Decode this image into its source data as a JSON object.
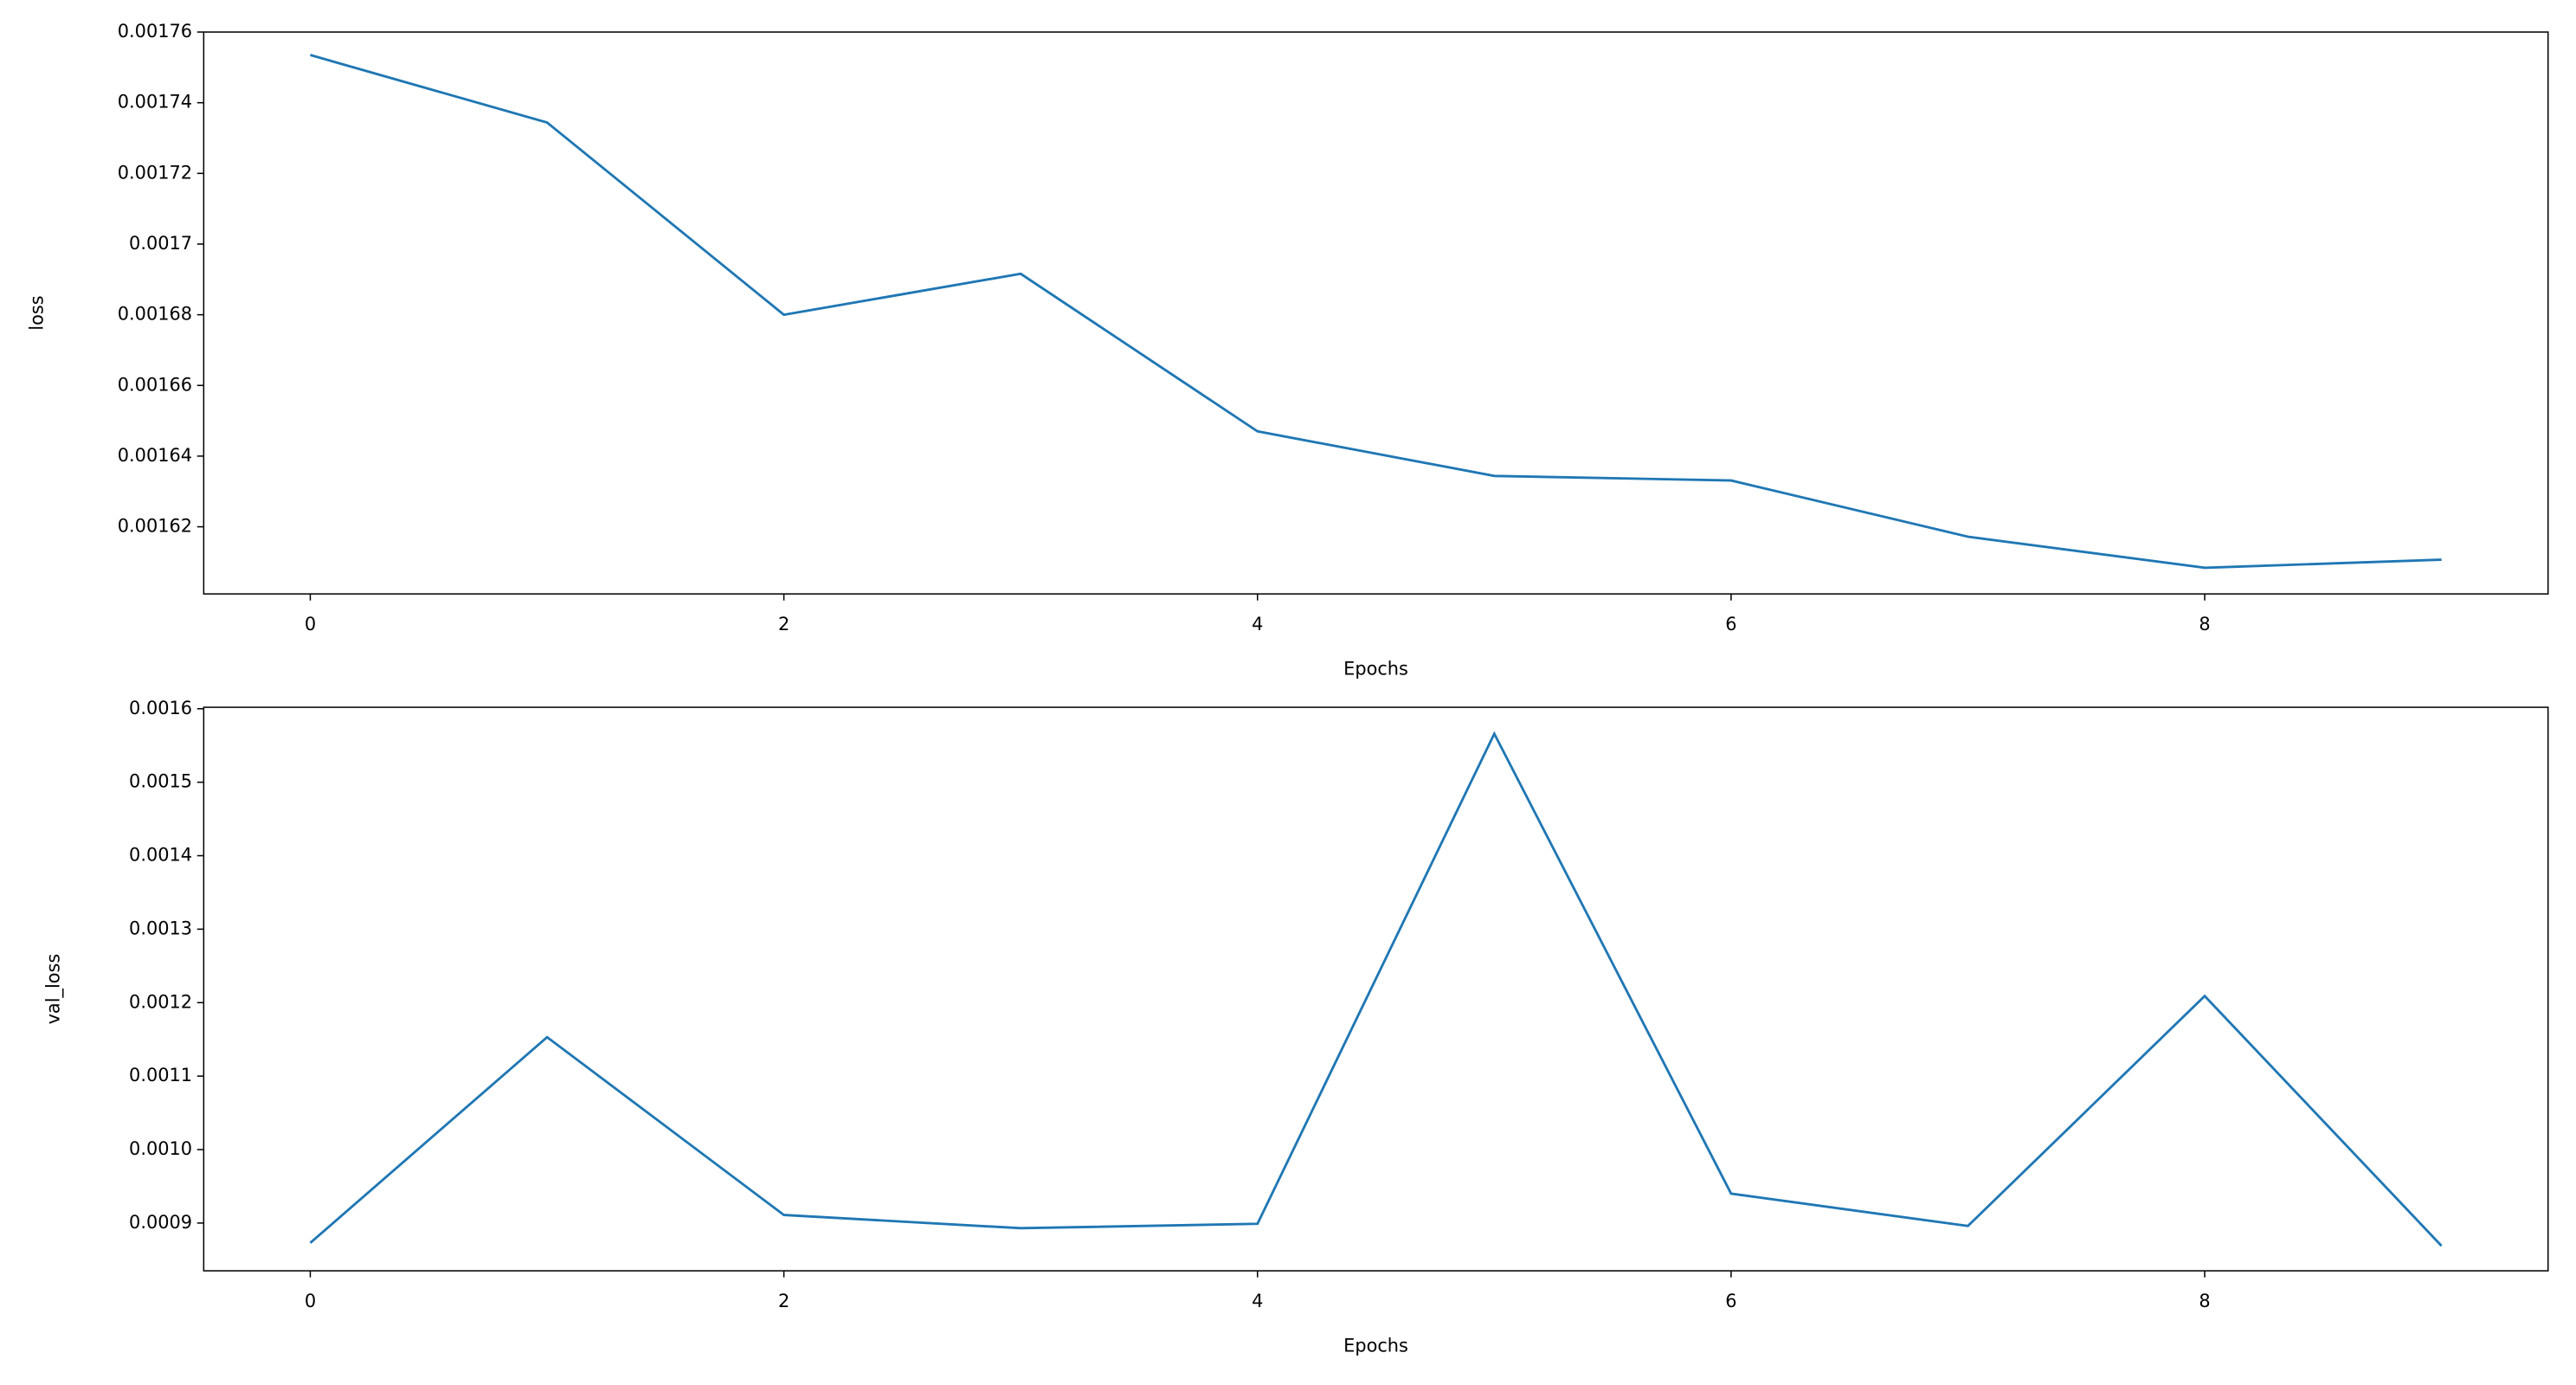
{
  "chart_data": [
    {
      "type": "line",
      "xlabel": "Epochs",
      "ylabel": "loss",
      "color": "#1f77b4",
      "x": [
        0,
        1,
        2,
        3,
        4,
        5,
        6,
        7,
        8,
        9
      ],
      "values": [
        0.0017535,
        0.0017344,
        0.00168,
        0.0016916,
        0.001647,
        0.0016344,
        0.0016331,
        0.0016172,
        0.0016084,
        0.0016107
      ],
      "xlim": [
        -0.45,
        9.45
      ],
      "xticks": [
        0,
        2,
        4,
        6,
        8
      ],
      "ylim": [
        0.001601,
        0.00176
      ],
      "yticks": [
        0.00162,
        0.00164,
        0.00166,
        0.00168,
        0.0017,
        0.00172,
        0.00174,
        0.00176
      ]
    },
    {
      "type": "line",
      "xlabel": "Epochs",
      "ylabel": "val_loss",
      "color": "#1f77b4",
      "x": [
        0,
        1,
        2,
        3,
        4,
        5,
        6,
        7,
        8,
        9
      ],
      "values": [
        0.000873,
        0.001153,
        0.000911,
        0.000893,
        0.000899,
        0.001566,
        0.00094,
        0.000896,
        0.001209,
        0.000869
      ],
      "xlim": [
        -0.45,
        9.45
      ],
      "xticks": [
        0,
        2,
        4,
        6,
        8
      ],
      "ylim": [
        0.000835,
        0.001602
      ],
      "yticks": [
        0.0009,
        {
          "value": 0.001,
          "label": "0.0010"
        },
        0.0011,
        0.0012,
        0.0013,
        0.0014,
        0.0015,
        0.0016
      ]
    }
  ]
}
